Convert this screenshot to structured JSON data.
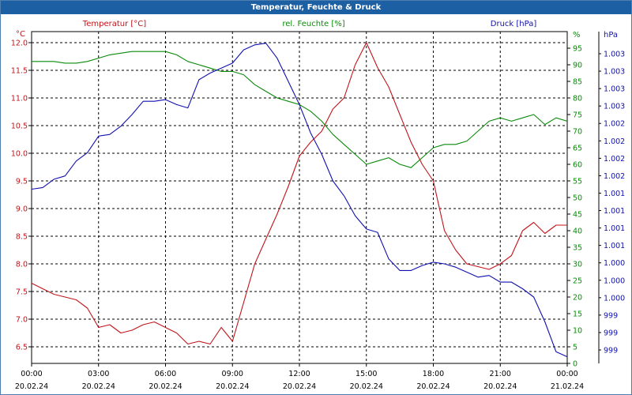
{
  "chart_data": {
    "type": "line",
    "title": "Temperatur, Feuchte & Druck",
    "grid": true,
    "x": [
      "00:00|20.02.24",
      "00:30",
      "01:00",
      "01:30",
      "02:00",
      "02:30",
      "03:00|20.02.24",
      "03:30",
      "04:00",
      "04:30",
      "05:00",
      "05:30",
      "06:00|20.02.24",
      "06:30",
      "07:00",
      "07:30",
      "08:00",
      "08:30",
      "09:00|20.02.24",
      "09:30",
      "10:00",
      "10:30",
      "11:00",
      "11:30",
      "12:00|20.02.24",
      "12:30",
      "13:00",
      "13:30",
      "14:00",
      "14:30",
      "15:00|20.02.24",
      "15:30",
      "16:00",
      "16:30",
      "17:00",
      "17:30",
      "18:00|20.02.24",
      "18:30",
      "19:00",
      "19:30",
      "20:00",
      "20:30",
      "21:00|20.02.24",
      "21:30",
      "22:00",
      "22:30",
      "23:00",
      "23:30",
      "00:00|21.02.24"
    ],
    "x_ticks": [
      {
        "time": "00:00",
        "date": "20.02.24"
      },
      {
        "time": "03:00",
        "date": "20.02.24"
      },
      {
        "time": "06:00",
        "date": "20.02.24"
      },
      {
        "time": "09:00",
        "date": "20.02.24"
      },
      {
        "time": "12:00",
        "date": "20.02.24"
      },
      {
        "time": "15:00",
        "date": "20.02.24"
      },
      {
        "time": "18:00",
        "date": "20.02.24"
      },
      {
        "time": "21:00",
        "date": "20.02.24"
      },
      {
        "time": "00:00",
        "date": "21.02.24"
      }
    ],
    "axes": {
      "temperature": {
        "label": "Temperatur [°C]",
        "unit": "°C",
        "color": "#c0141a",
        "ylim": [
          6.2,
          12.2
        ],
        "ticks": [
          "12.0",
          "11.5",
          "11.0",
          "10.5",
          "10.0",
          "9.5",
          "9.0",
          "8.5",
          "8.0",
          "7.5",
          "7.0",
          "6.5"
        ]
      },
      "humidity": {
        "label": "rel. Feuchte [%]",
        "unit": "%",
        "color": "#0a8a0a",
        "ylim": [
          0,
          100
        ],
        "ticks": [
          "95",
          "90",
          "85",
          "80",
          "75",
          "70",
          "65",
          "60",
          "55",
          "50",
          "45",
          "40",
          "35",
          "30",
          "25",
          "20",
          "15",
          "10",
          "5",
          "0"
        ]
      },
      "pressure": {
        "label": "Druck [hPa]",
        "unit": "hPa",
        "color": "#1010b0",
        "ticks": [
          "1.003",
          "1.003",
          "1.003",
          "1.003",
          "1.002",
          "1.002",
          "1.002",
          "1.002",
          "1.001",
          "1.001",
          "1.001",
          "1.001",
          "1.000",
          "1.000",
          "1.000",
          "999",
          "999",
          "999"
        ]
      }
    },
    "series": [
      {
        "name": "Temperatur [°C]",
        "axis": "temperature",
        "color": "#c0141a",
        "values": [
          7.65,
          7.55,
          7.45,
          7.4,
          7.35,
          7.2,
          6.85,
          6.9,
          6.75,
          6.8,
          6.9,
          6.95,
          6.85,
          6.75,
          6.55,
          6.6,
          6.55,
          6.85,
          6.6,
          7.3,
          8.0,
          8.45,
          8.9,
          9.4,
          9.95,
          10.2,
          10.4,
          10.8,
          11.0,
          11.6,
          12.0,
          11.55,
          11.2,
          10.7,
          10.2,
          9.8,
          9.5,
          8.6,
          8.25,
          8.0,
          7.95,
          7.9,
          8.0,
          8.15,
          8.6,
          8.75,
          8.55,
          8.7,
          8.7
        ]
      },
      {
        "name": "rel. Feuchte [%]",
        "axis": "humidity",
        "color": "#0a8a0a",
        "values": [
          91,
          91,
          91,
          90.5,
          90.5,
          91,
          92,
          93,
          93.5,
          94,
          94,
          94,
          94,
          93,
          91,
          90,
          89,
          88,
          88,
          87,
          84,
          82,
          80,
          79,
          78,
          76,
          73,
          69,
          66,
          63,
          60,
          61,
          62,
          60,
          59,
          62,
          65,
          66,
          66,
          67,
          70,
          73,
          74,
          73,
          74,
          75,
          72,
          74,
          73
        ]
      },
      {
        "name": "Druck [hPa]",
        "axis": "pressure",
        "color": "#1010b0",
        "pos": [
          0.525,
          0.53,
          0.555,
          0.565,
          0.61,
          0.635,
          0.685,
          0.69,
          0.715,
          0.75,
          0.79,
          0.79,
          0.795,
          0.78,
          0.77,
          0.855,
          0.875,
          0.89,
          0.905,
          0.945,
          0.96,
          0.965,
          0.92,
          0.85,
          0.78,
          0.695,
          0.63,
          0.55,
          0.505,
          0.445,
          0.405,
          0.395,
          0.315,
          0.28,
          0.28,
          0.295,
          0.305,
          0.3,
          0.29,
          0.275,
          0.26,
          0.265,
          0.245,
          0.245,
          0.225,
          0.2,
          0.125,
          0.035,
          0.02
        ]
      }
    ]
  }
}
